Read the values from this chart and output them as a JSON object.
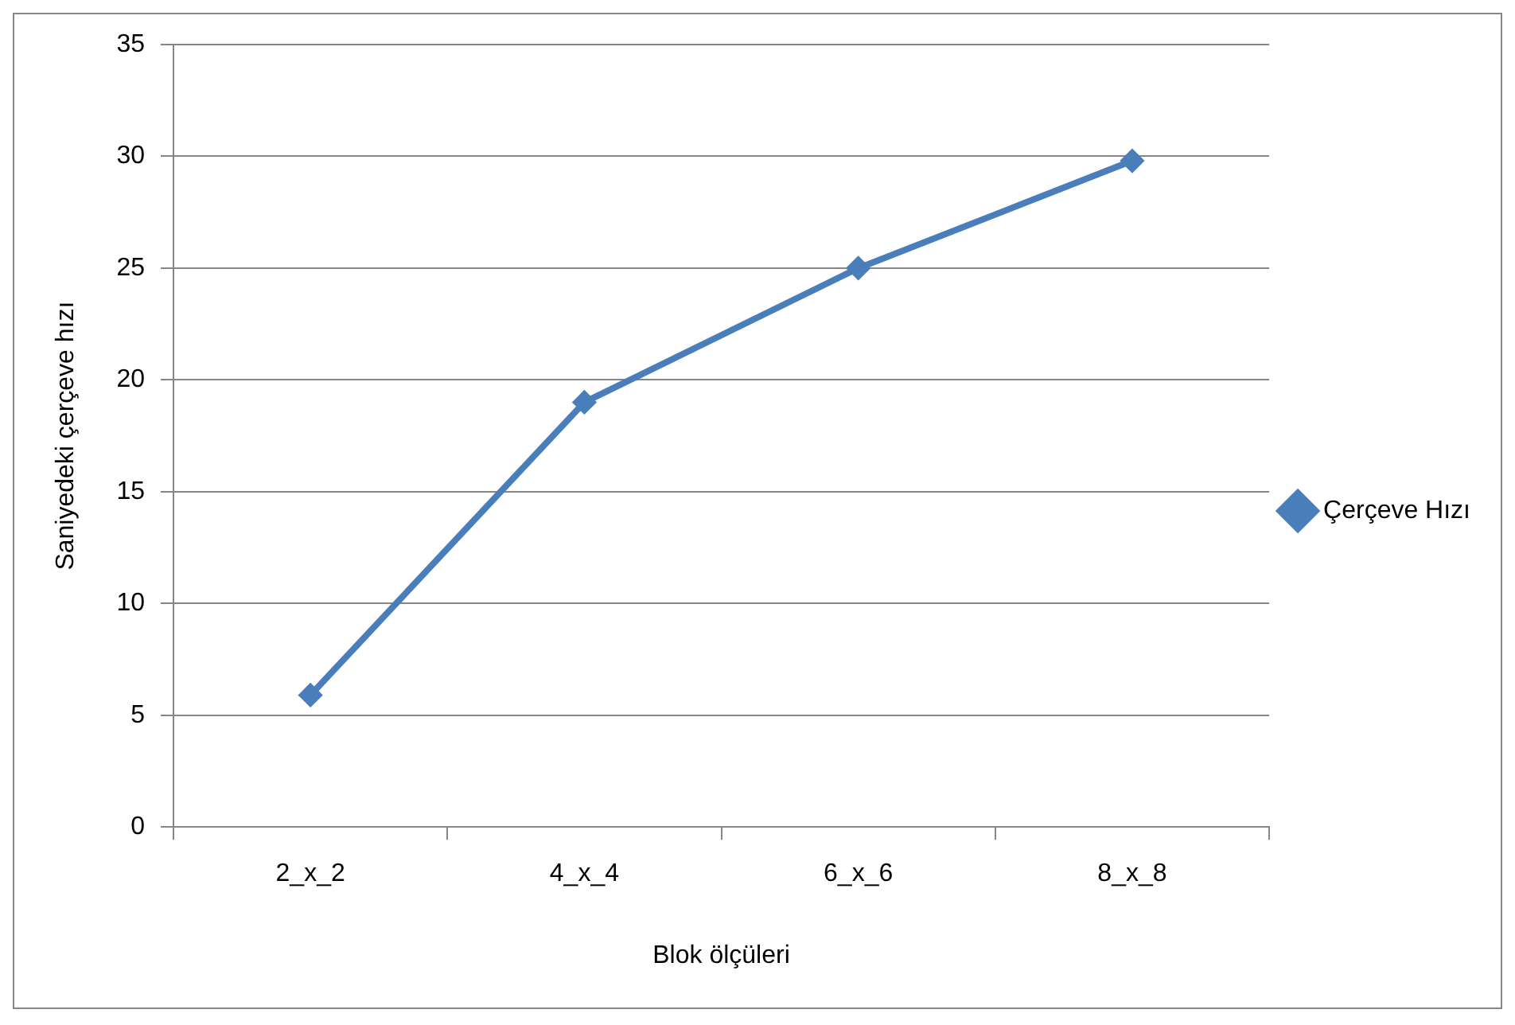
{
  "chart_data": {
    "type": "line",
    "xlabel": "Blok ölçüleri",
    "ylabel": "Saniyedeki çerçeve hızı",
    "categories": [
      "2_x_2",
      "4_x_4",
      "6_x_6",
      "8_x_8"
    ],
    "series": [
      {
        "name": "Çerçeve Hızı",
        "color": "#4a7ebb",
        "values": [
          5.9,
          19,
          25,
          29.8
        ]
      }
    ],
    "ylim": [
      0,
      35
    ],
    "yticks": [
      0,
      5,
      10,
      15,
      20,
      25,
      30,
      35
    ],
    "grid": "y",
    "legend": "right",
    "marker": "diamond",
    "line_style": "solid"
  }
}
